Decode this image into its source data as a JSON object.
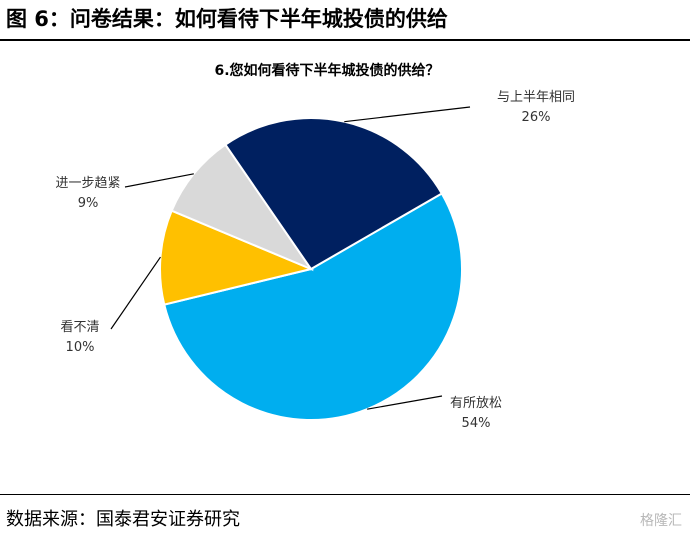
{
  "figure_title": "图 6：问卷结果：如何看待下半年城投债的供给",
  "source": "数据来源：国泰君安证券研究",
  "watermark": "格隆汇",
  "chart_data": {
    "type": "pie",
    "title": "6.您如何看待下半年城投债的供给？",
    "start_angle_deg": -30,
    "direction": "clockwise",
    "slices": [
      {
        "label": "有所放松",
        "value": 54,
        "value_label": "54%",
        "color": "#00AEEF"
      },
      {
        "label": "看不清",
        "value": 10,
        "value_label": "10%",
        "color": "#FFC000"
      },
      {
        "label": "进一步趋紧",
        "value": 9,
        "value_label": "9%",
        "color": "#D9D9D9"
      },
      {
        "label": "与上半年相同",
        "value": 26,
        "value_label": "26%",
        "color": "#002060"
      }
    ]
  }
}
